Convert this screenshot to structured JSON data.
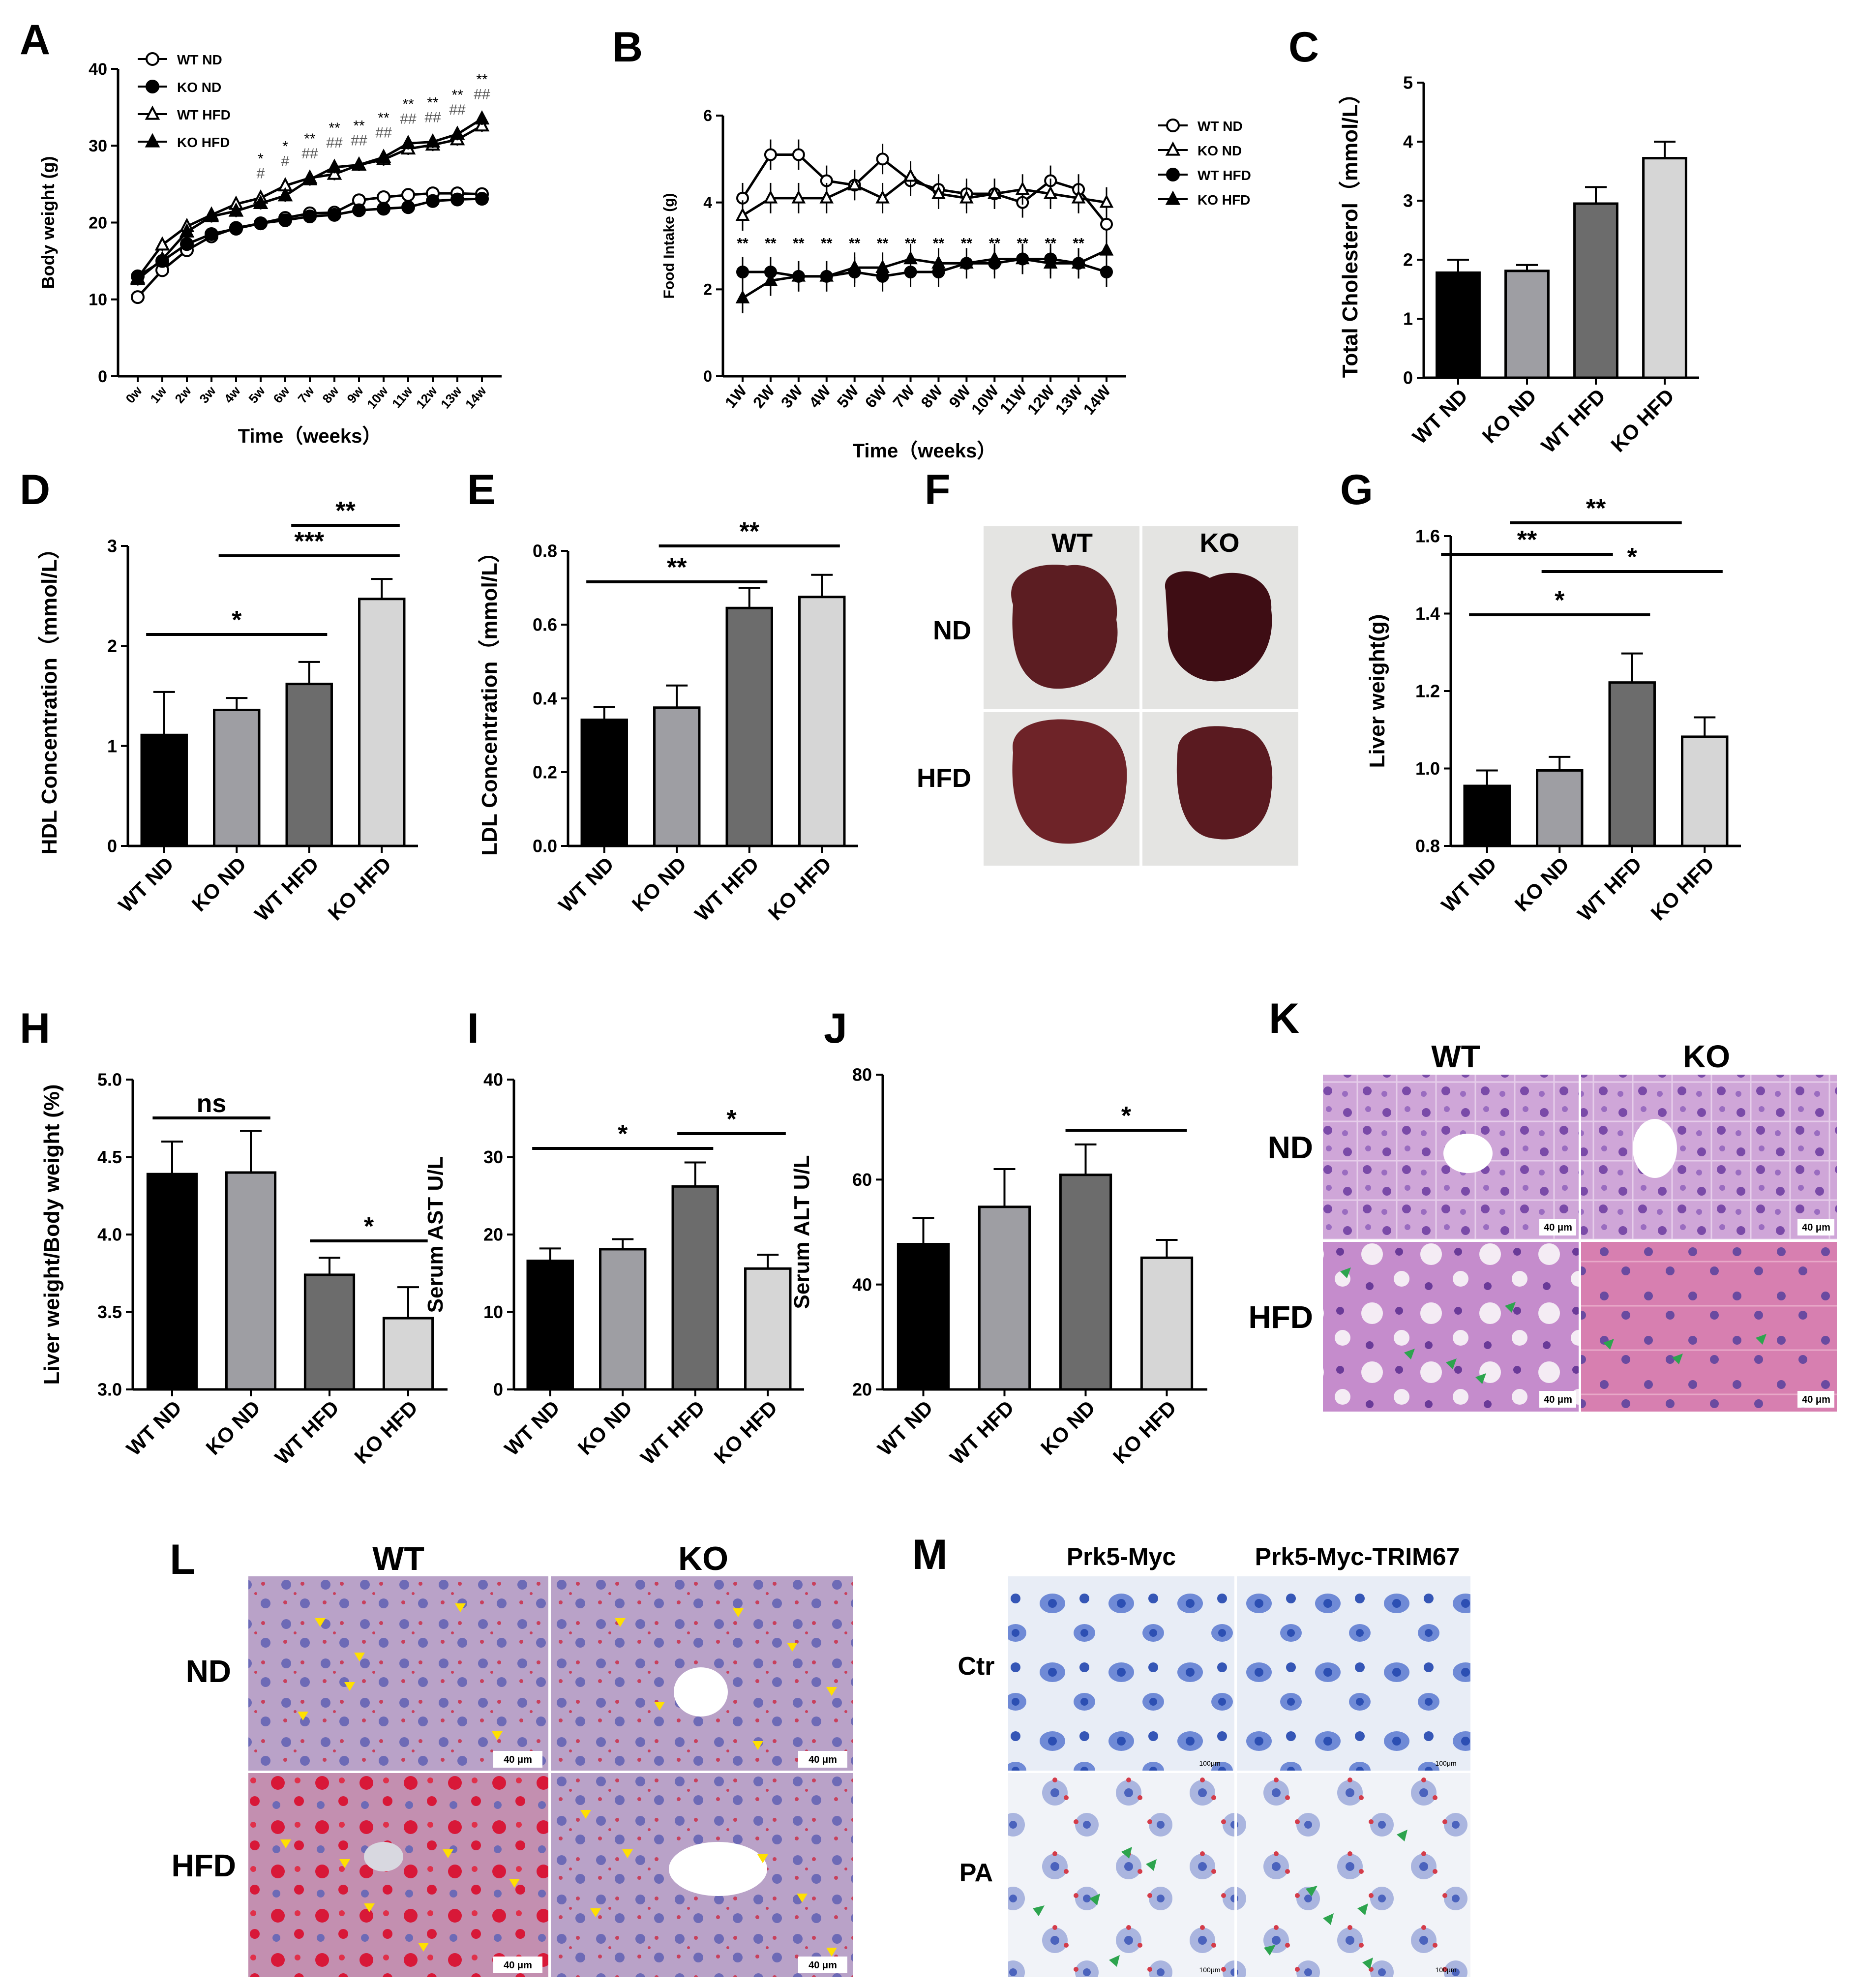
{
  "panel_letters": [
    "A",
    "B",
    "C",
    "D",
    "E",
    "F",
    "G",
    "H",
    "I",
    "J",
    "K",
    "L",
    "M"
  ],
  "colors": {
    "black": "#000000",
    "mid_gray": "#9e9ea3",
    "dark_gray": "#6c6c6c",
    "light_gray": "#d6d6d6",
    "liver": "#5a1c20",
    "he_stain": "#c99bd2",
    "oil_red": "#b8475e",
    "cell_blue": "#2c4fb3",
    "arrow_green": "#2da44e",
    "arrow_yellow": "#ffe000"
  },
  "chart_data": [
    {
      "id": "A",
      "type": "line",
      "x": [
        "0w",
        "1w",
        "2w",
        "3w",
        "4w",
        "5w",
        "6w",
        "7w",
        "8w",
        "9w",
        "10w",
        "11w",
        "12w",
        "13w",
        "14w"
      ],
      "xlabel": "Time（weeks）",
      "ylabel": "Body weight (g)",
      "ylim": [
        0,
        40
      ],
      "yticks": [
        "0",
        "10",
        "20",
        "30",
        "40"
      ],
      "series": [
        {
          "name": "WT ND",
          "marker": "open-circle",
          "values": [
            10.3,
            13.8,
            16.4,
            18.2,
            19.3,
            19.9,
            20.6,
            21.2,
            21.3,
            22.9,
            23.3,
            23.6,
            23.8,
            23.8,
            23.7
          ]
        },
        {
          "name": "KO ND",
          "marker": "filled-circle",
          "values": [
            13.0,
            15.0,
            17.2,
            18.5,
            19.2,
            19.9,
            20.3,
            20.8,
            21.0,
            21.6,
            21.8,
            22.0,
            22.8,
            23.0,
            23.1
          ]
        },
        {
          "name": "WT HFD",
          "marker": "open-triangle",
          "values": [
            12.8,
            17.1,
            19.5,
            21.0,
            22.4,
            23.2,
            24.8,
            25.8,
            26.3,
            27.5,
            28.2,
            29.6,
            30.1,
            30.8,
            32.6
          ]
        },
        {
          "name": "KO HFD",
          "marker": "filled-triangle",
          "values": [
            12.6,
            15.2,
            18.8,
            20.8,
            21.5,
            22.5,
            23.5,
            25.6,
            27.2,
            27.5,
            28.5,
            30.3,
            30.5,
            31.5,
            33.5
          ]
        }
      ],
      "annotations": [
        {
          "x": "5w",
          "lines": [
            "*",
            "#"
          ]
        },
        {
          "x": "6w",
          "lines": [
            "*",
            "#"
          ]
        },
        {
          "x": "7w",
          "lines": [
            "**",
            "##"
          ]
        },
        {
          "x": "8w",
          "lines": [
            "**",
            "##"
          ]
        },
        {
          "x": "9w",
          "lines": [
            "**",
            "##"
          ]
        },
        {
          "x": "10w",
          "lines": [
            "**",
            "##"
          ]
        },
        {
          "x": "11w",
          "lines": [
            "**",
            "##"
          ]
        },
        {
          "x": "12w",
          "lines": [
            "**",
            "##"
          ]
        },
        {
          "x": "13w",
          "lines": [
            "**",
            "##"
          ]
        },
        {
          "x": "14w",
          "lines": [
            "**",
            "##"
          ]
        }
      ]
    },
    {
      "id": "B",
      "type": "line",
      "x": [
        "1W",
        "2W",
        "3W",
        "4W",
        "5W",
        "6W",
        "7W",
        "8W",
        "9W",
        "10W",
        "11W",
        "12W",
        "13W",
        "14W"
      ],
      "xlabel": "Time（weeks）",
      "ylabel": "Food Intake (g)",
      "ylim": [
        0,
        6
      ],
      "yticks": [
        "0",
        "2",
        "4",
        "6"
      ],
      "series": [
        {
          "name": "WT ND",
          "marker": "open-circle",
          "values": [
            4.1,
            5.1,
            5.1,
            4.5,
            4.4,
            5.0,
            4.5,
            4.3,
            4.2,
            4.2,
            4.0,
            4.5,
            4.3,
            3.5
          ]
        },
        {
          "name": "KO ND",
          "marker": "open-triangle",
          "values": [
            3.7,
            4.1,
            4.1,
            4.1,
            4.4,
            4.1,
            4.6,
            4.2,
            4.1,
            4.2,
            4.3,
            4.2,
            4.1,
            4.0
          ]
        },
        {
          "name": "WT HFD",
          "marker": "filled-circle",
          "values": [
            2.4,
            2.4,
            2.3,
            2.3,
            2.4,
            2.3,
            2.4,
            2.4,
            2.6,
            2.6,
            2.7,
            2.7,
            2.6,
            2.4
          ]
        },
        {
          "name": "KO HFD",
          "marker": "filled-triangle",
          "values": [
            1.8,
            2.2,
            2.3,
            2.3,
            2.5,
            2.5,
            2.7,
            2.6,
            2.6,
            2.7,
            2.7,
            2.6,
            2.6,
            2.9
          ]
        }
      ],
      "annotations": [
        "**",
        "**",
        "**",
        "**",
        "**",
        "**",
        "**",
        "**",
        "**",
        "**",
        "**",
        "**",
        "**"
      ]
    },
    {
      "id": "C",
      "type": "bar",
      "categories": [
        "WT ND",
        "KO ND",
        "WT HFD",
        "KO HFD"
      ],
      "values": [
        1.78,
        1.81,
        2.95,
        3.72
      ],
      "errors": [
        0.22,
        0.1,
        0.28,
        0.28
      ],
      "ylabel": "Total Cholesterol（mmol/L）",
      "ylim": [
        0,
        5
      ],
      "yticks": [
        "0",
        "1",
        "2",
        "3",
        "4",
        "5"
      ],
      "significance": [
        {
          "from": 0,
          "to": 2,
          "label": "**"
        },
        {
          "from": 1,
          "to": 3,
          "label": "**"
        }
      ]
    },
    {
      "id": "D",
      "type": "bar",
      "categories": [
        "WT ND",
        "KO ND",
        "WT HFD",
        "KO HFD"
      ],
      "values": [
        1.11,
        1.36,
        1.62,
        2.47
      ],
      "errors": [
        0.43,
        0.12,
        0.22,
        0.2
      ],
      "ylabel": "HDL Concentration（mmol/L）",
      "ylim": [
        0,
        3
      ],
      "yticks": [
        "0",
        "1",
        "2",
        "3"
      ],
      "significance": [
        {
          "from": 0,
          "to": 2,
          "label": "*"
        },
        {
          "from": 1,
          "to": 3,
          "label": "***"
        },
        {
          "from": 2,
          "to": 3,
          "label": "**"
        }
      ]
    },
    {
      "id": "E",
      "type": "bar",
      "categories": [
        "WT ND",
        "KO ND",
        "WT HFD",
        "KO HFD"
      ],
      "values": [
        0.342,
        0.375,
        0.645,
        0.675
      ],
      "errors": [
        0.035,
        0.06,
        0.055,
        0.06
      ],
      "ylabel": "LDL Concentration（mmol/L）",
      "ylim": [
        0,
        0.8
      ],
      "yticks": [
        "0.0",
        "0.2",
        "0.4",
        "0.6",
        "0.8"
      ],
      "significance": [
        {
          "from": 0,
          "to": 2,
          "label": "**"
        },
        {
          "from": 1,
          "to": 3,
          "label": "**"
        }
      ]
    },
    {
      "id": "G",
      "type": "bar",
      "categories": [
        "WT ND",
        "KO ND",
        "WT HFD",
        "KO HFD"
      ],
      "values": [
        0.955,
        0.995,
        1.222,
        1.082
      ],
      "errors": [
        0.04,
        0.035,
        0.075,
        0.05
      ],
      "ylabel": "Liver weight(g)",
      "ylim": [
        0.8,
        1.6
      ],
      "yticks": [
        "0.8",
        "1.0",
        "1.2",
        "1.4",
        "1.6"
      ],
      "significance": [
        {
          "from": 0,
          "to": 2,
          "label": "*"
        },
        {
          "from": 1,
          "to": 3,
          "label": "*"
        }
      ]
    },
    {
      "id": "H",
      "type": "bar",
      "categories": [
        "WT ND",
        "KO ND",
        "WT HFD",
        "KO HFD"
      ],
      "values": [
        4.39,
        4.4,
        3.74,
        3.46
      ],
      "errors": [
        0.21,
        0.27,
        0.11,
        0.2
      ],
      "ylabel": "Liver weight/Body weight (%)",
      "ylim": [
        3.0,
        5.0
      ],
      "yticks": [
        "3.0",
        "3.5",
        "4.0",
        "4.5",
        "5.0"
      ],
      "significance": [
        {
          "from": 0,
          "to": 1,
          "label": "ns"
        },
        {
          "from": 2,
          "to": 3,
          "label": "*"
        }
      ]
    },
    {
      "id": "I",
      "type": "bar",
      "categories": [
        "WT ND",
        "KO ND",
        "WT HFD",
        "KO HFD"
      ],
      "values": [
        16.6,
        18.1,
        26.2,
        15.6
      ],
      "errors": [
        1.6,
        1.3,
        3.1,
        1.8
      ],
      "ylabel": "Serum AST U/L",
      "ylim": [
        0,
        40
      ],
      "yticks": [
        "0",
        "10",
        "20",
        "30",
        "40"
      ],
      "significance": [
        {
          "from": 0,
          "to": 2,
          "label": "*"
        },
        {
          "from": 2,
          "to": 3,
          "label": "*"
        }
      ]
    },
    {
      "id": "J",
      "type": "bar",
      "categories": [
        "WT ND",
        "WT HFD",
        "KO ND",
        "KO HFD"
      ],
      "values": [
        47.7,
        54.8,
        60.9,
        45.1
      ],
      "errors": [
        5.0,
        7.2,
        5.8,
        3.4
      ],
      "ylabel": "Serum ALT U/L",
      "ylim": [
        20,
        80
      ],
      "yticks": [
        "20",
        "40",
        "60",
        "80"
      ],
      "significance": [
        {
          "from": 2,
          "to": 3,
          "label": "*"
        }
      ]
    }
  ],
  "images": {
    "F": {
      "col_labels": [
        "WT",
        "KO"
      ],
      "row_labels": [
        "ND",
        "HFD"
      ]
    },
    "K": {
      "col_labels": [
        "WT",
        "KO"
      ],
      "row_labels": [
        "ND",
        "HFD"
      ],
      "scale": "40 μm"
    },
    "L": {
      "col_labels": [
        "WT",
        "KO"
      ],
      "row_labels": [
        "ND",
        "HFD"
      ],
      "scale": "40 μm"
    },
    "M": {
      "col_labels": [
        "Prk5-Myc",
        "Prk5-Myc-TRIM67"
      ],
      "row_labels": [
        "Ctr",
        "PA"
      ],
      "scale": "100μm"
    }
  }
}
